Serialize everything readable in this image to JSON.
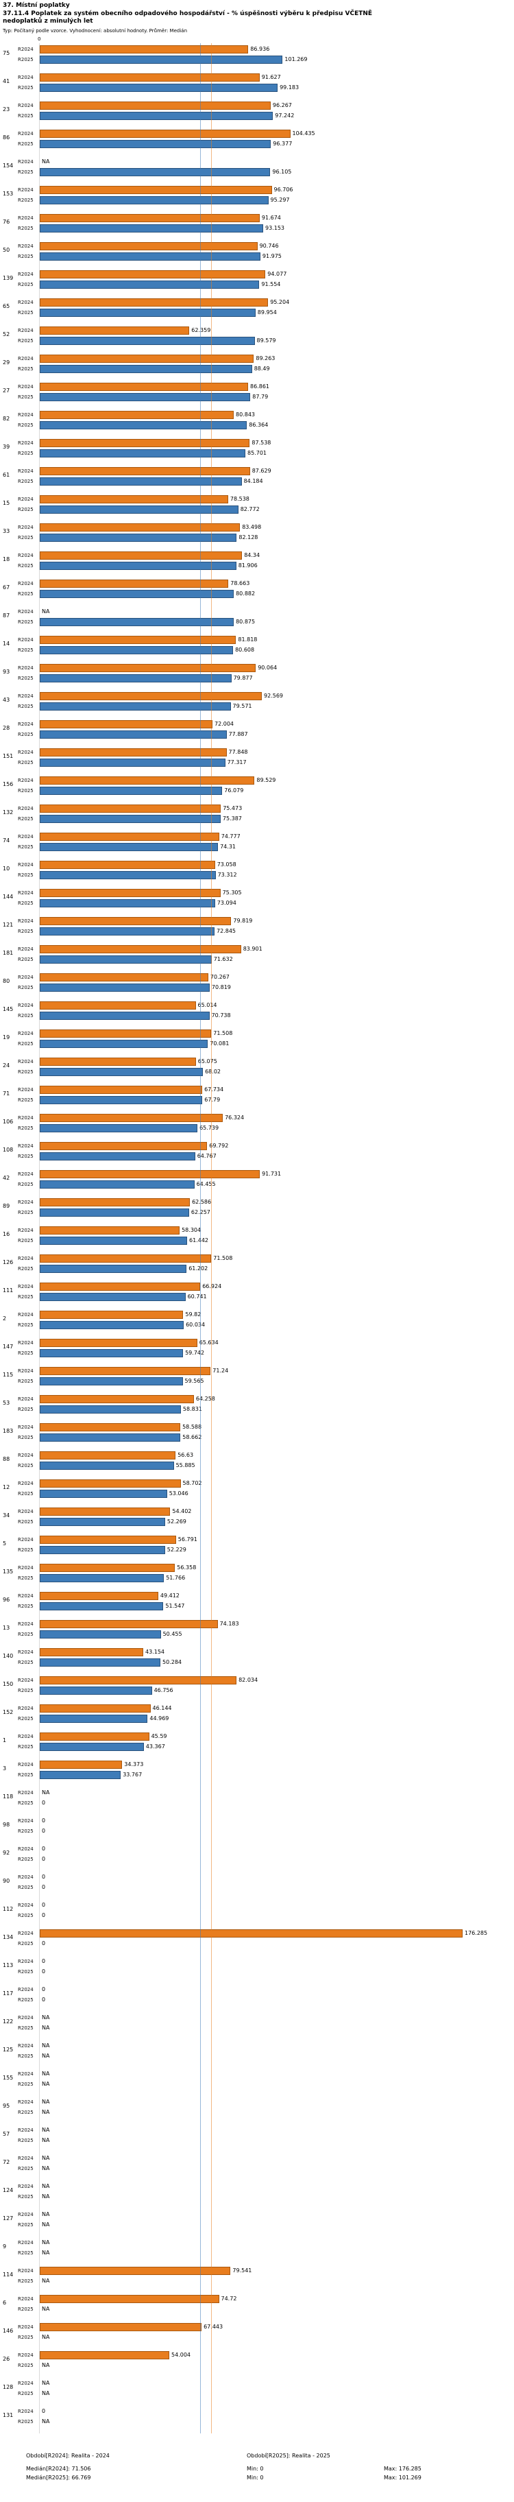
{
  "header": {
    "section_title": "37. Místní poplatky",
    "indicator_title": "37.11.4 Poplatek za systém obecního odpadového hospodářství - % úspěšnosti výběru k předpisu VČETNĚ nedoplatků z minulých let",
    "meta_line": "Typ: Počítaný podle vzorce. Vyhodnocení: absolutní hodnoty. Průměr: Medián"
  },
  "chart_data": {
    "type": "bar",
    "orientation": "horizontal",
    "sorted_by": "R2025 descending",
    "x_axis": {
      "tick_labels": [
        "0"
      ],
      "range": [
        0,
        180
      ]
    },
    "legend_position": "bottom",
    "grid": false,
    "series": [
      {
        "name": "R2024",
        "key": "r2024",
        "period": "Realita - 2024",
        "color": "#e87d1e",
        "border": "#a9580e",
        "median": 71.506,
        "min": 0,
        "max": 176.285
      },
      {
        "name": "R2025",
        "key": "r2025",
        "period": "Realita - 2025",
        "color": "#3f7cb8",
        "border": "#28517c",
        "median": 66.769,
        "min": 0,
        "max": 101.269
      }
    ],
    "groups": [
      {
        "label": "75",
        "r2024": "86.936",
        "r2025": "101.269"
      },
      {
        "label": "41",
        "r2024": "91.627",
        "r2025": "99.183"
      },
      {
        "label": "23",
        "r2024": "96.267",
        "r2025": "97.242"
      },
      {
        "label": "86",
        "r2024": "104.435",
        "r2025": "96.377"
      },
      {
        "label": "154",
        "r2024": "NA",
        "r2025": "96.105"
      },
      {
        "label": "153",
        "r2024": "96.706",
        "r2025": "95.297"
      },
      {
        "label": "76",
        "r2024": "91.674",
        "r2025": "93.153"
      },
      {
        "label": "50",
        "r2024": "90.746",
        "r2025": "91.975"
      },
      {
        "label": "139",
        "r2024": "94.077",
        "r2025": "91.554"
      },
      {
        "label": "65",
        "r2024": "95.204",
        "r2025": "89.954"
      },
      {
        "label": "52",
        "r2024": "62.359",
        "r2025": "89.579"
      },
      {
        "label": "29",
        "r2024": "89.263",
        "r2025": "88.49"
      },
      {
        "label": "27",
        "r2024": "86.861",
        "r2025": "87.79"
      },
      {
        "label": "82",
        "r2024": "80.843",
        "r2025": "86.364"
      },
      {
        "label": "39",
        "r2024": "87.538",
        "r2025": "85.701"
      },
      {
        "label": "61",
        "r2024": "87.629",
        "r2025": "84.184"
      },
      {
        "label": "15",
        "r2024": "78.538",
        "r2025": "82.772"
      },
      {
        "label": "33",
        "r2024": "83.498",
        "r2025": "82.128"
      },
      {
        "label": "18",
        "r2024": "84.34",
        "r2025": "81.906"
      },
      {
        "label": "67",
        "r2024": "78.663",
        "r2025": "80.882"
      },
      {
        "label": "87",
        "r2024": "NA",
        "r2025": "80.875"
      },
      {
        "label": "14",
        "r2024": "81.818",
        "r2025": "80.608"
      },
      {
        "label": "93",
        "r2024": "90.064",
        "r2025": "79.877"
      },
      {
        "label": "43",
        "r2024": "92.569",
        "r2025": "79.571"
      },
      {
        "label": "28",
        "r2024": "72.004",
        "r2025": "77.887"
      },
      {
        "label": "151",
        "r2024": "77.848",
        "r2025": "77.317"
      },
      {
        "label": "156",
        "r2024": "89.529",
        "r2025": "76.079"
      },
      {
        "label": "132",
        "r2024": "75.473",
        "r2025": "75.387"
      },
      {
        "label": "74",
        "r2024": "74.777",
        "r2025": "74.31"
      },
      {
        "label": "10",
        "r2024": "73.058",
        "r2025": "73.312"
      },
      {
        "label": "144",
        "r2024": "75.305",
        "r2025": "73.094"
      },
      {
        "label": "121",
        "r2024": "79.819",
        "r2025": "72.845"
      },
      {
        "label": "181",
        "r2024": "83.901",
        "r2025": "71.632"
      },
      {
        "label": "80",
        "r2024": "70.267",
        "r2025": "70.819"
      },
      {
        "label": "145",
        "r2024": "65.014",
        "r2025": "70.738"
      },
      {
        "label": "19",
        "r2024": "71.508",
        "r2025": "70.081"
      },
      {
        "label": "24",
        "r2024": "65.075",
        "r2025": "68.02"
      },
      {
        "label": "71",
        "r2024": "67.734",
        "r2025": "67.79"
      },
      {
        "label": "106",
        "r2024": "76.324",
        "r2025": "65.739"
      },
      {
        "label": "108",
        "r2024": "69.792",
        "r2025": "64.767"
      },
      {
        "label": "42",
        "r2024": "91.731",
        "r2025": "64.455"
      },
      {
        "label": "89",
        "r2024": "62.586",
        "r2025": "62.257"
      },
      {
        "label": "16",
        "r2024": "58.304",
        "r2025": "61.442"
      },
      {
        "label": "126",
        "r2024": "71.508",
        "r2025": "61.202"
      },
      {
        "label": "111",
        "r2024": "66.924",
        "r2025": "60.741"
      },
      {
        "label": "2",
        "r2024": "59.82",
        "r2025": "60.034"
      },
      {
        "label": "147",
        "r2024": "65.634",
        "r2025": "59.742"
      },
      {
        "label": "115",
        "r2024": "71.24",
        "r2025": "59.565"
      },
      {
        "label": "53",
        "r2024": "64.258",
        "r2025": "58.831"
      },
      {
        "label": "183",
        "r2024": "58.588",
        "r2025": "58.662"
      },
      {
        "label": "88",
        "r2024": "56.63",
        "r2025": "55.885"
      },
      {
        "label": "12",
        "r2024": "58.702",
        "r2025": "53.046"
      },
      {
        "label": "34",
        "r2024": "54.402",
        "r2025": "52.269"
      },
      {
        "label": "5",
        "r2024": "56.791",
        "r2025": "52.229"
      },
      {
        "label": "135",
        "r2024": "56.358",
        "r2025": "51.766"
      },
      {
        "label": "96",
        "r2024": "49.412",
        "r2025": "51.547"
      },
      {
        "label": "13",
        "r2024": "74.183",
        "r2025": "50.455"
      },
      {
        "label": "140",
        "r2024": "43.154",
        "r2025": "50.284"
      },
      {
        "label": "150",
        "r2024": "82.034",
        "r2025": "46.756"
      },
      {
        "label": "152",
        "r2024": "46.144",
        "r2025": "44.969"
      },
      {
        "label": "1",
        "r2024": "45.59",
        "r2025": "43.367"
      },
      {
        "label": "3",
        "r2024": "34.373",
        "r2025": "33.767"
      },
      {
        "label": "118",
        "r2024": "NA",
        "r2025": "0"
      },
      {
        "label": "98",
        "r2024": "0",
        "r2025": "0"
      },
      {
        "label": "92",
        "r2024": "0",
        "r2025": "0"
      },
      {
        "label": "90",
        "r2024": "0",
        "r2025": "0"
      },
      {
        "label": "112",
        "r2024": "0",
        "r2025": "0"
      },
      {
        "label": "134",
        "r2024": "176.285",
        "r2025": "0"
      },
      {
        "label": "113",
        "r2024": "0",
        "r2025": "0"
      },
      {
        "label": "117",
        "r2024": "0",
        "r2025": "0"
      },
      {
        "label": "122",
        "r2024": "NA",
        "r2025": "NA"
      },
      {
        "label": "125",
        "r2024": "NA",
        "r2025": "NA"
      },
      {
        "label": "155",
        "r2024": "NA",
        "r2025": "NA"
      },
      {
        "label": "95",
        "r2024": "NA",
        "r2025": "NA"
      },
      {
        "label": "57",
        "r2024": "NA",
        "r2025": "NA"
      },
      {
        "label": "72",
        "r2024": "NA",
        "r2025": "NA"
      },
      {
        "label": "124",
        "r2024": "NA",
        "r2025": "NA"
      },
      {
        "label": "127",
        "r2024": "NA",
        "r2025": "NA"
      },
      {
        "label": "9",
        "r2024": "NA",
        "r2025": "NA"
      },
      {
        "label": "114",
        "r2024": "79.541",
        "r2025": "NA"
      },
      {
        "label": "6",
        "r2024": "74.72",
        "r2025": "NA"
      },
      {
        "label": "146",
        "r2024": "67.443",
        "r2025": "NA"
      },
      {
        "label": "26",
        "r2024": "54.004",
        "r2025": "NA"
      },
      {
        "label": "128",
        "r2024": "NA",
        "r2025": "NA"
      },
      {
        "label": "131",
        "r2024": "0",
        "r2025": "NA"
      }
    ]
  },
  "footer": {
    "period_r2024": "Období[R2024]: Realita - 2024",
    "period_r2025": "Období[R2025]: Realita - 2025",
    "median_r2024": "Medián[R2024]: 71.506",
    "min_r2024": "Min: 0",
    "max_r2024": "Max: 176.285",
    "median_r2025": "Medián[R2025]: 66.769",
    "min_r2025": "Min: 0",
    "max_r2025": "Max: 101.269"
  }
}
